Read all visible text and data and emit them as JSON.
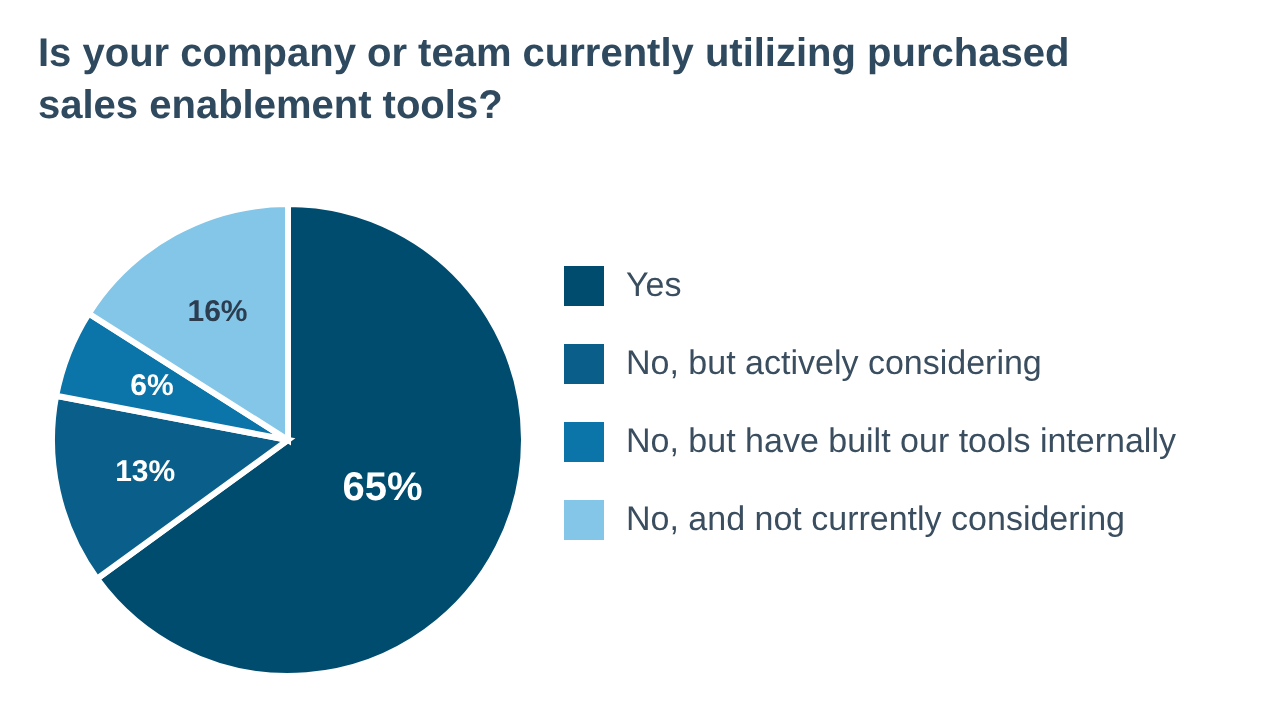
{
  "chart_data": {
    "type": "pie",
    "title": "Is your company or team currently utilizing purchased sales enablement tools?",
    "categories": [
      "Yes",
      "No, but actively considering",
      "No, but have built our tools internally",
      "No, and not currently considering"
    ],
    "values": [
      65,
      13,
      6,
      16
    ],
    "colors": [
      "#004c6f",
      "#0a5f8a",
      "#0b74a8",
      "#84c6e8"
    ],
    "value_labels": [
      "65%",
      "13%",
      "6%",
      "16%"
    ],
    "legend": "right"
  }
}
